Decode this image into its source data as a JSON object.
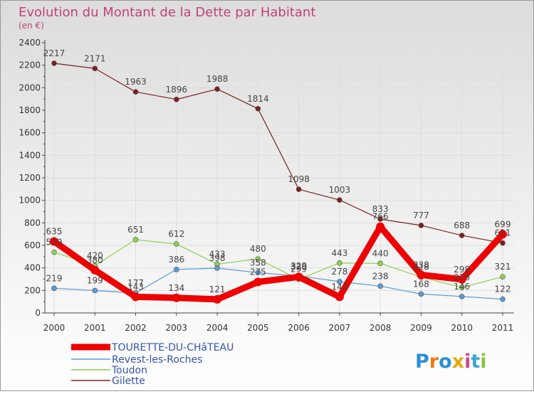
{
  "header": {
    "title": "Evolution du Montant de la Dette par Habitant",
    "unit": "(en €)"
  },
  "brand": {
    "letters": [
      "P",
      "r",
      "o",
      "x",
      "i",
      "t",
      "i"
    ],
    "colors": [
      "#2a8fd6",
      "#f07a12",
      "#2a8fd6",
      "#e8a90c",
      "#d04a8a",
      "#3aa6d6",
      "#8cc43c"
    ]
  },
  "colors": {
    "title": "#c3417b",
    "axis": "#444444",
    "grid": "#dddddd",
    "background_top": "#dcdcdc",
    "background_bottom": "#ffffff"
  },
  "chart_data": {
    "type": "line",
    "title": "Evolution du Montant de la Dette par Habitant",
    "ylabel": "(en €)",
    "categories": [
      "2000",
      "2001",
      "2002",
      "2003",
      "2004",
      "2005",
      "2006",
      "2007",
      "2008",
      "2009",
      "2010",
      "2011"
    ],
    "ylim": [
      0,
      2400
    ],
    "yticks": [
      0,
      200,
      400,
      600,
      800,
      1000,
      1200,
      1400,
      1600,
      1800,
      2000,
      2200,
      2400
    ],
    "grid": true,
    "legend_position": "bottom-left",
    "series": [
      {
        "name": "TOURETTE-DU-CHâTEAU",
        "color": "#ee0000",
        "values": [
          635,
          380,
          143,
          134,
          121,
          275,
          320,
          143,
          766,
          338,
          298,
          699
        ]
      },
      {
        "name": "Revest-les-Roches",
        "color": "#5b9bd5",
        "values": [
          219,
          199,
          177,
          386,
          398,
          358,
          329,
          278,
          238,
          168,
          146,
          122
        ]
      },
      {
        "name": "Toudon",
        "color": "#8fd14f",
        "values": [
          539,
          420,
          651,
          612,
          433,
          480,
          299,
          443,
          440,
          318,
          226,
          321
        ]
      },
      {
        "name": "Gilette",
        "color": "#7b2020",
        "values": [
          2217,
          2171,
          1963,
          1896,
          1988,
          1814,
          1098,
          1003,
          833,
          777,
          688,
          621
        ]
      }
    ],
    "data_labels": [
      [
        "635",
        "380",
        "143",
        "134",
        "121",
        "275",
        "320",
        "143",
        "766",
        "338",
        "298",
        "699"
      ],
      [
        "219",
        "199",
        "177",
        "386",
        "398",
        "358",
        "329",
        "278",
        "238",
        "168",
        "146",
        "122"
      ],
      [
        "539",
        "420",
        "651",
        "612",
        "433",
        "480",
        "299",
        "443",
        "440",
        "318",
        "226",
        "321"
      ],
      [
        "2217",
        "2171",
        "1963",
        "1896",
        "1988",
        "1814",
        "1098",
        "1003",
        "833",
        "777",
        "688",
        "621"
      ]
    ]
  }
}
